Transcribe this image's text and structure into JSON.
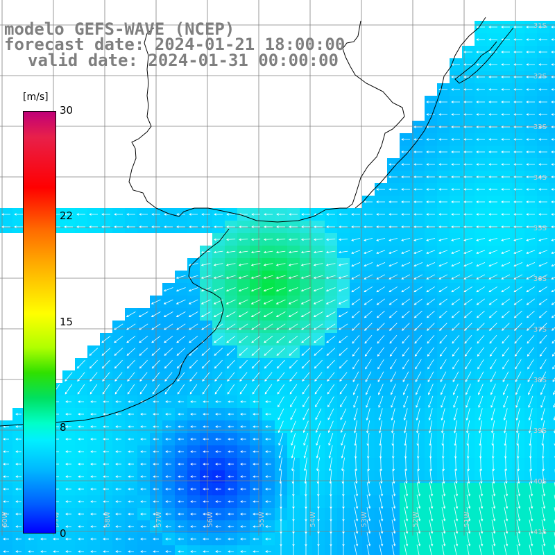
{
  "title": {
    "line1": "modelo GEFS-WAVE (NCEP)",
    "line2": "forecast date: 2024-01-21 18:00:00",
    "line3": "valid date: 2024-01-31 00:00:00"
  },
  "colorbar": {
    "unit": "[m/s]",
    "ticks": [
      "30",
      "22",
      "15",
      "8",
      "0"
    ],
    "tick_values": [
      30,
      22,
      15,
      8,
      0
    ]
  },
  "grid": {
    "lat_labels": [
      "31S",
      "32S",
      "33S",
      "34S",
      "35S",
      "36S",
      "37S",
      "38S",
      "39S",
      "40S",
      "41S"
    ],
    "lon_labels": [
      "60W",
      "59W",
      "58W",
      "57W",
      "56W",
      "55W",
      "54W",
      "53W",
      "52W",
      "51W"
    ]
  },
  "colors": {
    "title": "#7f7f7f",
    "land": "#ffffff",
    "coast": "#000000",
    "grid": "#7f7f7f",
    "arrow": "#ffffff"
  }
}
